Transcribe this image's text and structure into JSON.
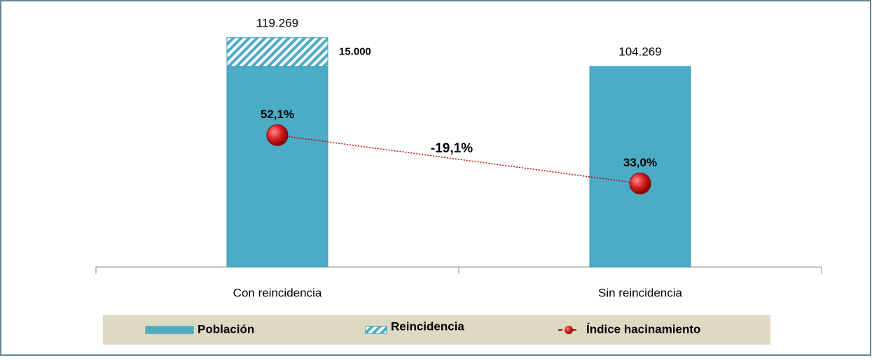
{
  "chart_data": {
    "type": "bar",
    "categories": [
      "Con reincidencia",
      "Sin reincidencia"
    ],
    "series": [
      {
        "name": "Población",
        "color": "#4bacc6",
        "values": [
          104269,
          104269
        ]
      },
      {
        "name": "Reincidencia",
        "color": "#4bacc6",
        "pattern": "hatch",
        "values": [
          15000,
          null
        ],
        "value_labels": [
          "15.000",
          null
        ]
      },
      {
        "name": "Índice hacinamiento",
        "type": "line",
        "axis": "y2",
        "color": "#c00000",
        "values": [
          52.1,
          33.0
        ],
        "value_labels": [
          "52,1%",
          "33,0%"
        ]
      }
    ],
    "total_labels": [
      "119.269",
      "104.269"
    ],
    "annotations": [
      {
        "text": "-19,1%",
        "color": "#1a9a1a"
      }
    ],
    "ylim": [
      0,
      125000
    ],
    "y2lim": [
      0,
      95
    ],
    "legend": "bottom"
  }
}
